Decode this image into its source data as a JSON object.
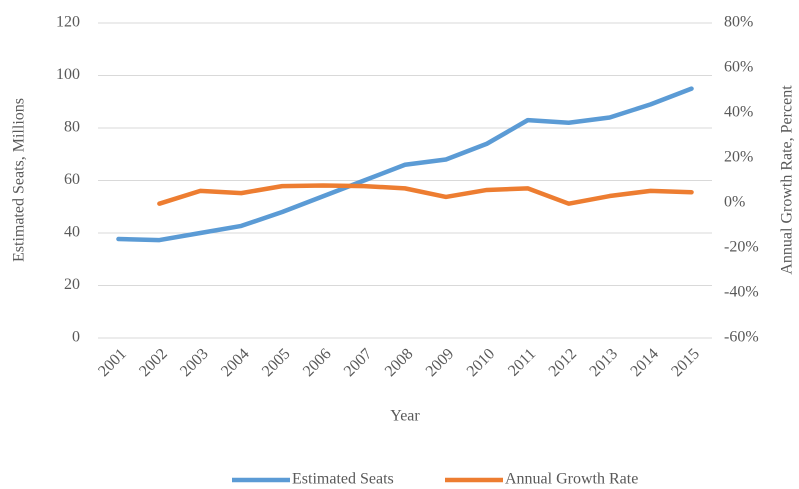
{
  "chart_data": {
    "type": "line",
    "x_label": "Year",
    "y_label": "Estimated Seats, Millions",
    "y2_label": "Annual Growth Rate, Percent",
    "categories": [
      "2001",
      "2002",
      "2003",
      "2004",
      "2005",
      "2006",
      "2007",
      "2008",
      "2009",
      "2010",
      "2011",
      "2012",
      "2013",
      "2014",
      "2015"
    ],
    "series": [
      {
        "name": "Estimated Seats",
        "color": "#5b9bd5",
        "values": [
          37.7,
          37.3,
          40,
          42.7,
          48,
          54,
          60,
          66,
          68,
          74,
          83,
          82,
          84,
          89,
          95
        ]
      },
      {
        "name": "Annual Growth Rate",
        "color": "#ed7d31",
        "axis": "y2",
        "values": [
          null,
          -0.3,
          5.4,
          4.4,
          7.5,
          7.8,
          7.5,
          6.5,
          2.7,
          5.8,
          6.5,
          -0.3,
          3.1,
          5.4,
          4.8
        ]
      }
    ],
    "ylim": [
      0,
      120
    ],
    "yticks": [
      0,
      20,
      40,
      60,
      80,
      100,
      120
    ],
    "y2lim": [
      -60,
      80
    ],
    "y2ticks": [
      {
        "value": -60,
        "label": "-60%"
      },
      {
        "value": -40,
        "label": "-40%"
      },
      {
        "value": -20,
        "label": "-20%"
      },
      {
        "value": 0,
        "label": "0%"
      },
      {
        "value": 20,
        "label": "20%"
      },
      {
        "value": 40,
        "label": "40%"
      },
      {
        "value": 60,
        "label": "60%"
      },
      {
        "value": 80,
        "label": "80%"
      }
    ],
    "grid": true,
    "legend": "bottom"
  }
}
